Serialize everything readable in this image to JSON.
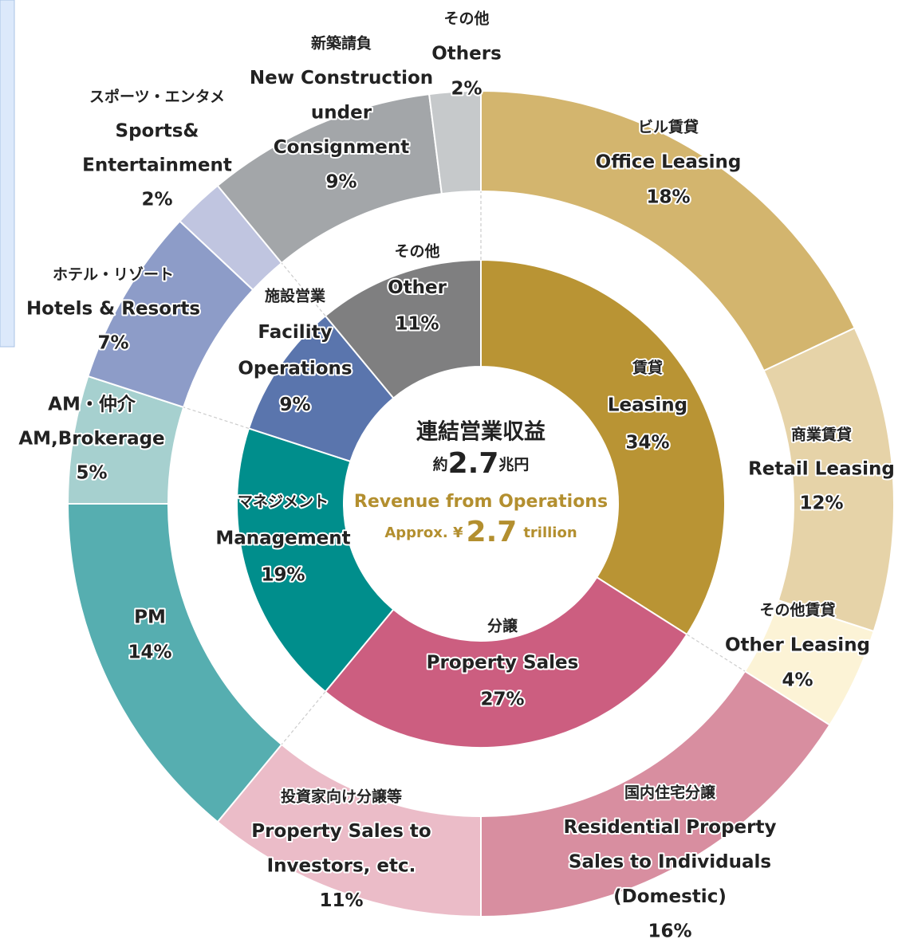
{
  "chart_data": {
    "type": "nested-donut",
    "center": {
      "title": "連結営業収益",
      "amount_prefix": "約",
      "amount": "2.7",
      "amount_suffix": "兆円",
      "subtitle": "Revenue from Operations",
      "approx_prefix": "Approx. ¥",
      "approx_amount": "2.7",
      "approx_suffix": "trillion"
    },
    "inner": {
      "labels": [
        [
          "賃貸",
          "Leasing"
        ],
        [
          "分譲",
          "Property Sales"
        ],
        [
          "マネジメント",
          "Management"
        ],
        [
          "施設営業",
          "Facility",
          "Operations"
        ],
        [
          "その他",
          "Other"
        ]
      ],
      "values": [
        34,
        27,
        19,
        9,
        11
      ],
      "value_labels": [
        "34%",
        "27%",
        "19%",
        "9%",
        "11%"
      ],
      "colors": [
        "#b99434",
        "#cc5e80",
        "#008e8c",
        "#5a75ad",
        "#7f7f80"
      ]
    },
    "outer": {
      "labels": [
        [
          "ビル賃貸",
          "Office Leasing"
        ],
        [
          "商業賃貸",
          "Retail Leasing"
        ],
        [
          "その他賃貸",
          "Other Leasing"
        ],
        [
          "国内住宅分譲",
          "Residential Property",
          "Sales to Individuals",
          "(Domestic)"
        ],
        [
          "投資家向け分譲等",
          "Property Sales to",
          "Investors, etc."
        ],
        [
          "PM"
        ],
        [
          "AM・仲介",
          "AM,Brokerage"
        ],
        [
          "ホテル・リゾート",
          "Hotels & Resorts"
        ],
        [
          "スポーツ・エンタメ",
          "Sports&",
          "Entertainment"
        ],
        [
          "新築請負",
          "New Construction",
          "under",
          "Consignment"
        ],
        [
          "その他",
          "Others"
        ]
      ],
      "values": [
        18,
        12,
        4,
        16,
        11,
        14,
        5,
        7,
        2,
        9,
        2
      ],
      "value_labels": [
        "18%",
        "12%",
        "4%",
        "16%",
        "11%",
        "14%",
        "5%",
        "7%",
        "2%",
        "9%",
        "2%"
      ],
      "colors": [
        "#d3b56e",
        "#e6d3a8",
        "#fcf3d6",
        "#d88ea0",
        "#ebbcc8",
        "#56aeb0",
        "#a6d0cf",
        "#8d9cc8",
        "#c0c5e0",
        "#a3a6a9",
        "#c6c9cb"
      ]
    }
  }
}
